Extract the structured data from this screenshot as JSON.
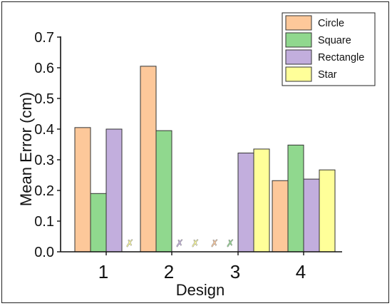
{
  "chart_data": {
    "type": "bar",
    "title": "",
    "xlabel": "Design",
    "ylabel": "Mean Error (cm)",
    "ylim": [
      0,
      0.7
    ],
    "yticks": [
      "0.0",
      "0.1",
      "0.2",
      "0.3",
      "0.4",
      "0.5",
      "0.6",
      "0.7"
    ],
    "categories": [
      "1",
      "2",
      "3",
      "4"
    ],
    "legend_position": "top-right",
    "series": [
      {
        "name": "Circle",
        "color": "#FDC89A",
        "values": [
          0.405,
          0.605,
          null,
          0.232
        ]
      },
      {
        "name": "Square",
        "color": "#90D88E",
        "values": [
          0.19,
          0.395,
          null,
          0.348
        ]
      },
      {
        "name": "Rectangle",
        "color": "#C2AEDD",
        "values": [
          0.4,
          null,
          0.322,
          0.237
        ]
      },
      {
        "name": "Star",
        "color": "#FFFF99",
        "values": [
          null,
          null,
          0.335,
          0.267
        ]
      }
    ],
    "missing_marker": "✗"
  }
}
